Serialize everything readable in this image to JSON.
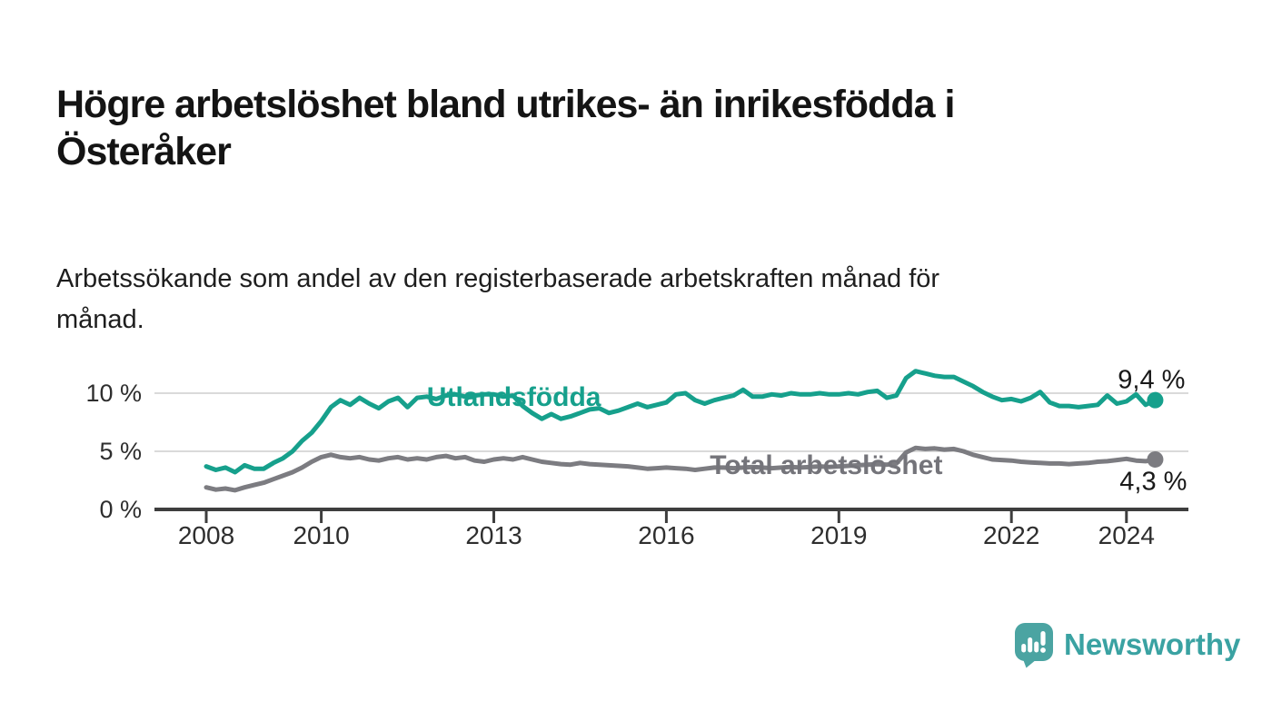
{
  "title": {
    "full": "Högre arbetslöshet bland utrikes- än inrikesfödda i Österåker",
    "lines": [
      "Högre arbetslöshet bland utrikes- än inrikesfödda i",
      "Österåker"
    ]
  },
  "subtitle": {
    "full": "Arbetssökande som andel av den registerbaserade arbetskraften månad för månad.",
    "lines": [
      "Arbetssökande som andel av den registerbaserade arbetskraften månad för",
      "månad."
    ]
  },
  "logo": {
    "text": "Newsworthy",
    "icon": "speech-bubble-bar-chart",
    "color": "#4ba4a2"
  },
  "chart_data": {
    "type": "line",
    "x_unit": "decimal_year",
    "x_start": 2008.0,
    "x_step_years": 0.1666667,
    "xlim": [
      2008.0,
      2024.5
    ],
    "ylim": [
      0,
      12.5
    ],
    "grid": "horizontal",
    "legend_position": "inline-labels",
    "y_ticks": [
      {
        "value": 0,
        "label": "0 %"
      },
      {
        "value": 5,
        "label": "5 %"
      },
      {
        "value": 10,
        "label": "10 %"
      }
    ],
    "x_ticks": [
      {
        "year": 2008,
        "label": "2008"
      },
      {
        "year": 2010,
        "label": "2010"
      },
      {
        "year": 2013,
        "label": "2013"
      },
      {
        "year": 2016,
        "label": "2016"
      },
      {
        "year": 2019,
        "label": "2019"
      },
      {
        "year": 2022,
        "label": "2022"
      },
      {
        "year": 2024,
        "label": "2024"
      }
    ],
    "series": [
      {
        "name": "Utlandsfödda",
        "label": "Utlandsfödda",
        "end_label": "9,4 %",
        "end_value": 9.4,
        "color": "#16a08c",
        "label_color": "#16a08c",
        "values": [
          3.7,
          3.4,
          3.6,
          3.2,
          3.8,
          3.5,
          3.5,
          4.0,
          4.4,
          5.0,
          5.9,
          6.6,
          7.6,
          8.8,
          9.4,
          9.0,
          9.6,
          9.1,
          8.7,
          9.3,
          9.6,
          8.8,
          9.6,
          9.7,
          9.5,
          9.8,
          9.9,
          9.7,
          9.8,
          9.9,
          9.9,
          9.7,
          9.8,
          8.9,
          8.3,
          7.8,
          8.2,
          7.8,
          8.0,
          8.3,
          8.6,
          8.7,
          8.3,
          8.5,
          8.8,
          9.1,
          8.8,
          9.0,
          9.2,
          9.9,
          10.0,
          9.4,
          9.1,
          9.4,
          9.6,
          9.8,
          10.3,
          9.7,
          9.7,
          9.9,
          9.8,
          10.0,
          9.9,
          9.9,
          10.0,
          9.9,
          9.9,
          10.0,
          9.9,
          10.1,
          10.2,
          9.6,
          9.8,
          11.3,
          11.9,
          11.7,
          11.5,
          11.4,
          11.4,
          11.0,
          10.6,
          10.1,
          9.7,
          9.4,
          9.5,
          9.3,
          9.6,
          10.1,
          9.2,
          8.9,
          8.9,
          8.8,
          8.9,
          9.0,
          9.8,
          9.1,
          9.3,
          9.9,
          9.0,
          9.4
        ]
      },
      {
        "name": "Total arbetslöshet",
        "label": "Total arbetslöshet",
        "end_label": "4,3 %",
        "end_value": 4.3,
        "color": "#7c7c81",
        "label_color": "#74747a",
        "values": [
          1.9,
          1.7,
          1.8,
          1.65,
          1.9,
          2.1,
          2.3,
          2.6,
          2.9,
          3.2,
          3.6,
          4.1,
          4.5,
          4.7,
          4.5,
          4.4,
          4.5,
          4.3,
          4.2,
          4.4,
          4.5,
          4.3,
          4.4,
          4.3,
          4.5,
          4.6,
          4.4,
          4.5,
          4.2,
          4.1,
          4.3,
          4.4,
          4.3,
          4.5,
          4.3,
          4.1,
          4.0,
          3.9,
          3.85,
          4.0,
          3.9,
          3.85,
          3.8,
          3.75,
          3.7,
          3.6,
          3.5,
          3.55,
          3.6,
          3.55,
          3.5,
          3.4,
          3.5,
          3.6,
          3.6,
          3.55,
          3.6,
          3.65,
          3.6,
          3.55,
          3.6,
          3.65,
          3.6,
          3.65,
          3.7,
          3.65,
          3.7,
          3.75,
          3.8,
          3.85,
          3.9,
          3.85,
          3.95,
          4.9,
          5.3,
          5.2,
          5.25,
          5.15,
          5.2,
          5.0,
          4.7,
          4.5,
          4.3,
          4.25,
          4.2,
          4.1,
          4.05,
          4.0,
          3.95,
          3.95,
          3.9,
          3.95,
          4.0,
          4.1,
          4.15,
          4.25,
          4.35,
          4.2,
          4.15,
          4.3
        ]
      }
    ]
  }
}
